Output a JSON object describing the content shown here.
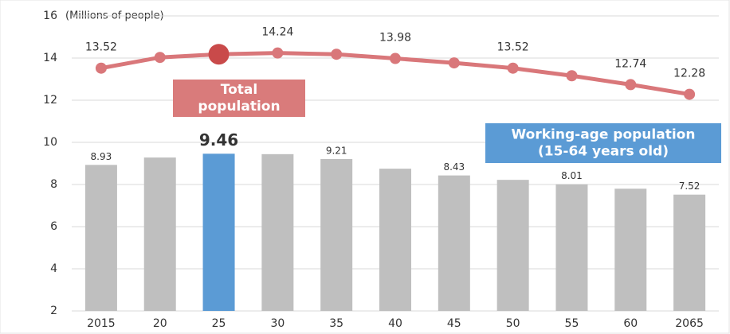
{
  "chart_data": {
    "type": "combo",
    "y_axis_label": "(Millions of people)",
    "categories": [
      "2015",
      "20",
      "25",
      "30",
      "35",
      "40",
      "45",
      "50",
      "55",
      "60",
      "2065"
    ],
    "highlight_category": "25",
    "ylim": [
      2,
      16
    ],
    "yticks": [
      2,
      4,
      6,
      8,
      10,
      12,
      14,
      16
    ],
    "grid": true,
    "series": [
      {
        "type": "bar",
        "color": "#bfbfbf",
        "highlight_color": "#5b9bd5",
        "values": [
          8.93,
          9.28,
          9.46,
          9.44,
          9.21,
          8.75,
          8.43,
          8.22,
          8.01,
          7.8,
          7.52
        ],
        "value_labels": [
          "8.93",
          null,
          "9.46",
          null,
          "9.21",
          null,
          "8.43",
          null,
          "8.01",
          null,
          "7.52"
        ]
      },
      {
        "type": "line",
        "color": "#d9777a",
        "highlight_color": "#c94a4a",
        "values": [
          13.52,
          14.03,
          14.18,
          14.24,
          14.18,
          13.98,
          13.77,
          13.52,
          13.16,
          12.74,
          12.28
        ],
        "value_labels": [
          "13.52",
          null,
          null,
          "14.24",
          null,
          "13.98",
          null,
          "13.52",
          null,
          "12.74",
          "12.28"
        ]
      }
    ],
    "annotations": [
      {
        "lines": [
          "Total",
          "population"
        ],
        "color": "#d97b7b"
      },
      {
        "lines": [
          "Working-age population",
          "(15-64 years old)"
        ],
        "color": "#5b9bd5"
      }
    ]
  }
}
